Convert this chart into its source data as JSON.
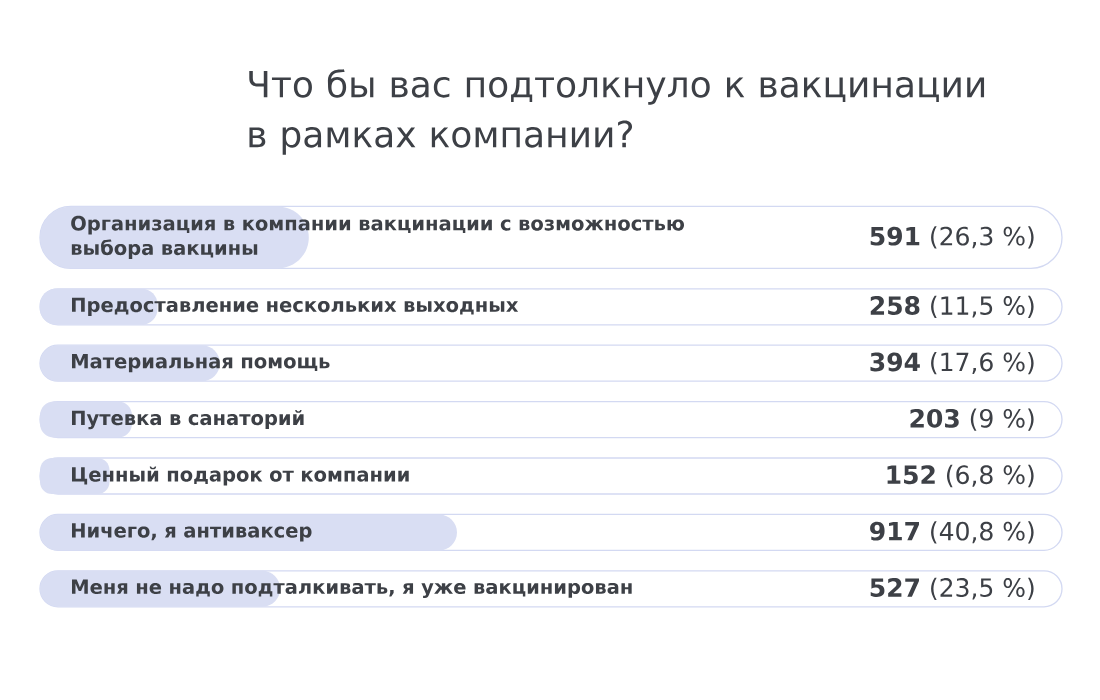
{
  "chart_data": {
    "type": "bar",
    "orientation": "horizontal",
    "title": "Что бы вас подтолкнуло к вакцинации в рамках компании?",
    "categories": [
      "Организация в компании вакцинации с возможностью выбора вакцины",
      "Предоставление нескольких выходных",
      "Материальная помощь",
      "Путевка в санаторий",
      "Ценный подарок от компании",
      "Ничего, я антиваксер",
      "Меня не надо подталкивать, я уже вакцинирован"
    ],
    "values": [
      26.3,
      11.5,
      17.6,
      9,
      6.8,
      40.8,
      23.5
    ],
    "value_labels": [
      "**591** (26,3 %)",
      "**258** (11,5 %)",
      "**394** (17,6 %)",
      "**203** (9 %)",
      "**152** (6,8 %)",
      "**917** (40,8 %)",
      "**527** (23,5 %)"
    ],
    "color": "#d9def3",
    "xlim": [
      0,
      100
    ],
    "tick_labels": "y"
  }
}
